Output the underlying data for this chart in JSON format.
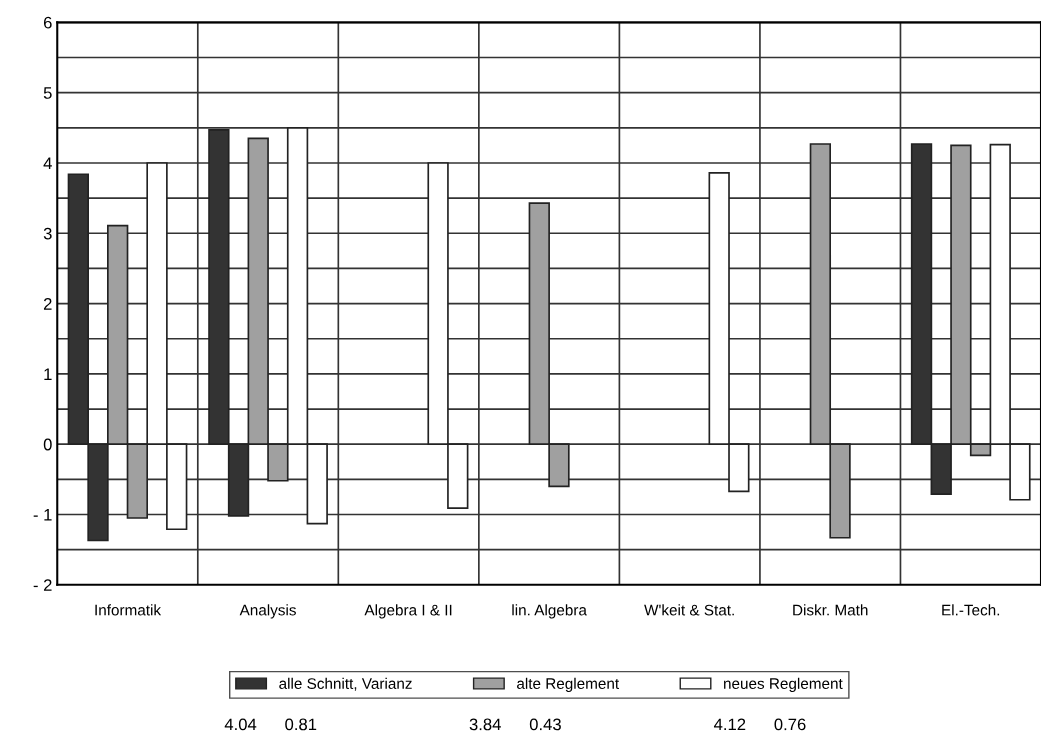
{
  "chart_data": {
    "type": "bar",
    "categories": [
      "Informatik",
      "Analysis",
      "Algebra I & II",
      "lin. Algebra",
      "W'keit & Stat.",
      "Diskr. Math",
      "El.-Tech."
    ],
    "series": [
      {
        "name": "alle Schnitt, Varianz",
        "color": "#333333",
        "values": [
          3.84,
          4.47,
          null,
          null,
          null,
          null,
          4.27
        ]
      },
      {
        "color": "#333333",
        "values": [
          -1.37,
          -1.02,
          null,
          null,
          null,
          null,
          -0.71
        ]
      },
      {
        "name": "alte Reglement",
        "color": "#a0a0a0",
        "values": [
          3.11,
          4.35,
          null,
          3.43,
          null,
          4.27,
          4.25
        ]
      },
      {
        "color": "#a0a0a0",
        "values": [
          -1.05,
          -0.52,
          null,
          -0.6,
          null,
          -1.33,
          -0.16
        ]
      },
      {
        "name": "neues Reglement",
        "color": "#ffffff",
        "values": [
          4.0,
          4.5,
          4.0,
          null,
          3.86,
          null,
          4.26
        ]
      },
      {
        "color": "#ffffff",
        "values": [
          -1.21,
          -1.13,
          -0.91,
          null,
          -0.67,
          null,
          -0.79
        ]
      }
    ],
    "ylim": [
      -2,
      6
    ],
    "yticks": [
      {
        "value": -2,
        "label": "- 2"
      },
      {
        "value": -1.5,
        "label": null
      },
      {
        "value": -1,
        "label": "- 1"
      },
      {
        "value": -0.5,
        "label": null
      },
      0,
      {
        "value": 0.5,
        "label": null
      },
      1,
      {
        "value": 1.5,
        "label": null
      },
      2,
      {
        "value": 2.5,
        "label": null
      },
      3,
      {
        "value": 3.5,
        "label": null
      },
      4,
      {
        "value": 4.5,
        "label": null
      },
      5,
      {
        "value": 5.5,
        "label": null
      },
      6
    ],
    "grid": true,
    "legend": "bottom",
    "annotations": [
      "4.04      0.81",
      "3.84      0.43",
      "4.12      0.76"
    ]
  }
}
